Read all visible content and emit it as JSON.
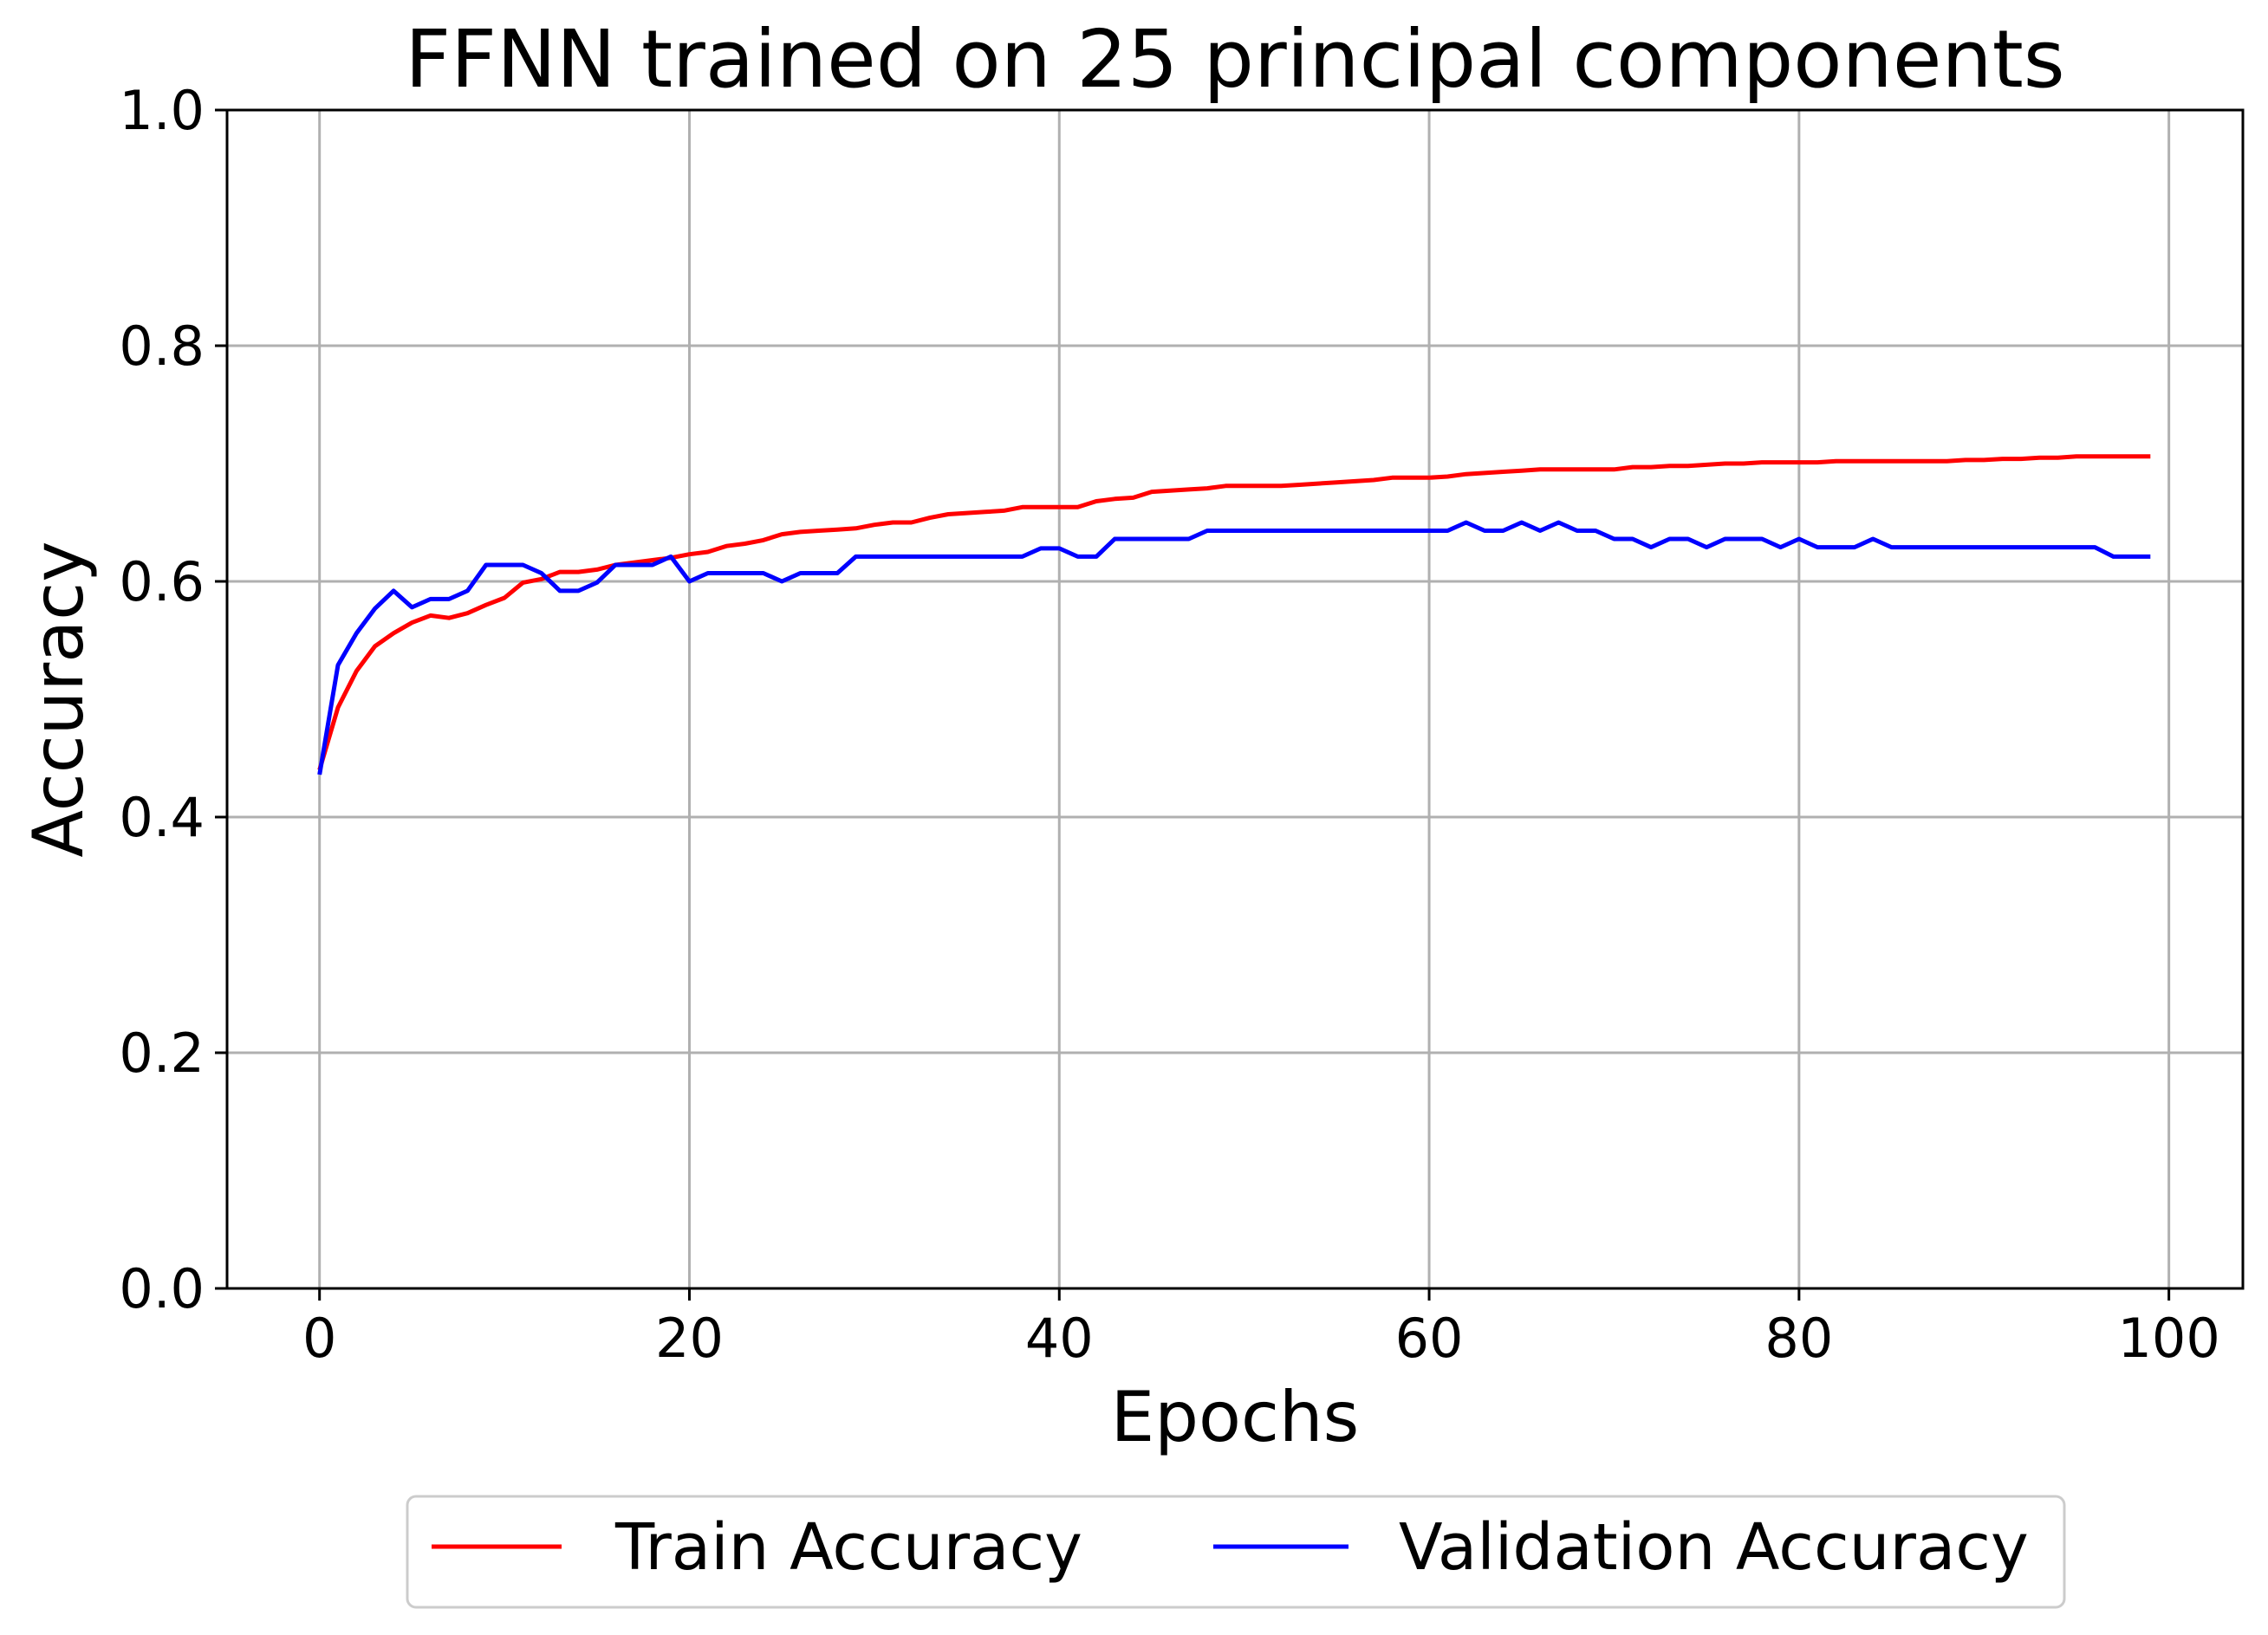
{
  "chart_data": {
    "type": "line",
    "title": "FFNN trained on 25 principal components",
    "xlabel": "Epochs",
    "ylabel": "Accuracy",
    "xlim": [
      -5,
      104
    ],
    "ylim": [
      0.0,
      1.0
    ],
    "xticks": [
      0,
      20,
      40,
      60,
      80,
      100
    ],
    "xtick_labels": [
      "0",
      "20",
      "40",
      "60",
      "80",
      "100"
    ],
    "yticks": [
      0.0,
      0.2,
      0.4,
      0.6,
      0.8,
      1.0
    ],
    "ytick_labels": [
      "0.0",
      "0.2",
      "0.4",
      "0.6",
      "0.8",
      "1.0"
    ],
    "grid": true,
    "legend_position": "bottom-center, below axes",
    "series": [
      {
        "name": "Train Accuracy",
        "color": "#ff0000",
        "values": [
          0.44,
          0.493,
          0.524,
          0.545,
          0.556,
          0.565,
          0.571,
          0.569,
          0.573,
          0.58,
          0.586,
          0.599,
          0.602,
          0.608,
          0.608,
          0.61,
          0.614,
          0.616,
          0.618,
          0.62,
          0.623,
          0.625,
          0.63,
          0.632,
          0.635,
          0.64,
          0.642,
          0.643,
          0.644,
          0.645,
          0.648,
          0.65,
          0.65,
          0.654,
          0.657,
          0.658,
          0.659,
          0.66,
          0.663,
          0.663,
          0.663,
          0.663,
          0.668,
          0.67,
          0.671,
          0.676,
          0.677,
          0.678,
          0.679,
          0.681,
          0.681,
          0.681,
          0.681,
          0.682,
          0.683,
          0.684,
          0.685,
          0.686,
          0.688,
          0.688,
          0.688,
          0.689,
          0.691,
          0.692,
          0.693,
          0.694,
          0.695,
          0.695,
          0.695,
          0.695,
          0.695,
          0.697,
          0.697,
          0.698,
          0.698,
          0.699,
          0.7,
          0.7,
          0.701,
          0.701,
          0.701,
          0.701,
          0.702,
          0.702,
          0.702,
          0.702,
          0.702,
          0.702,
          0.702,
          0.703,
          0.703,
          0.704,
          0.704,
          0.705,
          0.705,
          0.706,
          0.706,
          0.706,
          0.706,
          0.706
        ]
      },
      {
        "name": "Validation Accuracy",
        "color": "#0000ff",
        "values": [
          0.436,
          0.529,
          0.556,
          0.577,
          0.592,
          0.578,
          0.585,
          0.585,
          0.592,
          0.614,
          0.614,
          0.614,
          0.607,
          0.592,
          0.592,
          0.599,
          0.614,
          0.614,
          0.614,
          0.621,
          0.6,
          0.607,
          0.607,
          0.607,
          0.607,
          0.6,
          0.607,
          0.607,
          0.607,
          0.621,
          0.621,
          0.621,
          0.621,
          0.621,
          0.621,
          0.621,
          0.621,
          0.621,
          0.621,
          0.628,
          0.628,
          0.621,
          0.621,
          0.636,
          0.636,
          0.636,
          0.636,
          0.636,
          0.643,
          0.643,
          0.643,
          0.643,
          0.643,
          0.643,
          0.643,
          0.643,
          0.643,
          0.643,
          0.643,
          0.643,
          0.643,
          0.643,
          0.65,
          0.643,
          0.643,
          0.65,
          0.643,
          0.65,
          0.643,
          0.643,
          0.636,
          0.636,
          0.629,
          0.636,
          0.636,
          0.629,
          0.636,
          0.636,
          0.636,
          0.629,
          0.636,
          0.629,
          0.629,
          0.629,
          0.636,
          0.629,
          0.629,
          0.629,
          0.629,
          0.629,
          0.629,
          0.629,
          0.629,
          0.629,
          0.629,
          0.629,
          0.629,
          0.621,
          0.621,
          0.621
        ]
      }
    ]
  }
}
